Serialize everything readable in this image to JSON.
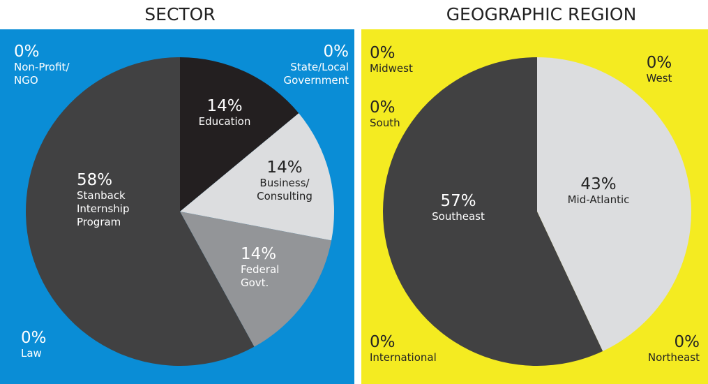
{
  "chart_data": [
    {
      "type": "pie",
      "title": "SECTOR",
      "background": "#0a8dd6",
      "categories": [
        "Education",
        "Business/\nConsulting",
        "Federal\nGovt.",
        "Stanback\nInternship\nProgram",
        "Law",
        "Non-Profit/\nNGO",
        "State/Local\nGovernment"
      ],
      "values": [
        14,
        14,
        14,
        58,
        0,
        0,
        0
      ],
      "value_labels": [
        "14%",
        "14%",
        "14%",
        "58%",
        "0%",
        "0%",
        "0%"
      ],
      "colors": [
        "#231f20",
        "#dcdddf",
        "#939598",
        "#414142",
        "#414142",
        "#414142",
        "#414142"
      ]
    },
    {
      "type": "pie",
      "title": "GEOGRAPHIC REGION",
      "background": "#f4eb21",
      "categories": [
        "Mid-Atlantic",
        "Northeast",
        "Southeast",
        "International",
        "South",
        "Midwest",
        "West"
      ],
      "values": [
        43,
        0,
        57,
        0,
        0,
        0,
        0
      ],
      "value_labels": [
        "43%",
        "0%",
        "57%",
        "0%",
        "0%",
        "0%",
        "0%"
      ],
      "colors": [
        "#dcdddf",
        "#dcdddf",
        "#414142",
        "#414142",
        "#414142",
        "#414142",
        "#414142"
      ]
    }
  ]
}
